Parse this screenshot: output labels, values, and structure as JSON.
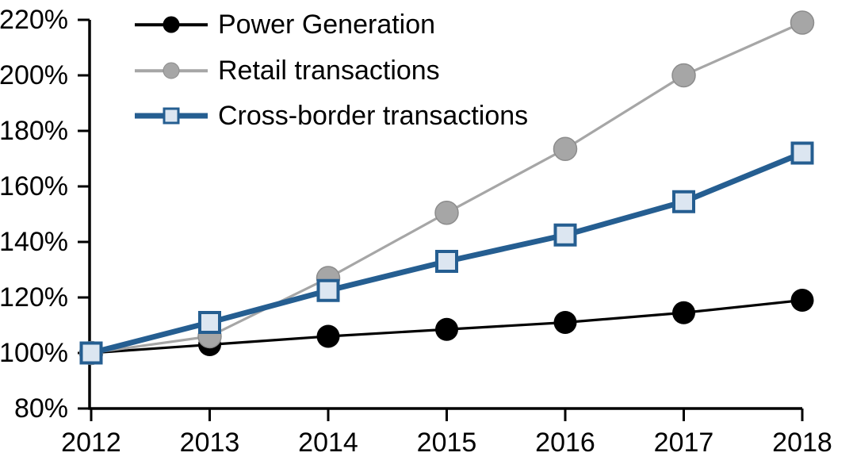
{
  "chart_data": {
    "type": "line",
    "title": "",
    "xlabel": "",
    "ylabel": "",
    "categories": [
      "2012",
      "2013",
      "2014",
      "2015",
      "2016",
      "2017",
      "2018"
    ],
    "series": [
      {
        "name": "Power Generation",
        "values": [
          100,
          103,
          106,
          108.5,
          111,
          114.5,
          119
        ],
        "color": "#000000",
        "marker": "circle",
        "marker_fill": "#000000",
        "marker_stroke": "none",
        "line_width": 3.2
      },
      {
        "name": "Retail transactions",
        "values": [
          100,
          106,
          127,
          150.5,
          173.5,
          200,
          219
        ],
        "color": "#A6A6A6",
        "marker": "circle",
        "marker_fill": "#A6A6A6",
        "marker_stroke": "#8C8C8C",
        "line_width": 3.2
      },
      {
        "name": "Cross-border transactions",
        "values": [
          100,
          111,
          122.5,
          133,
          142.5,
          154.5,
          172
        ],
        "color": "#255E91",
        "marker": "square",
        "marker_fill": "#DCE6F1",
        "marker_stroke": "#255E91",
        "line_width": 7
      }
    ],
    "ylim": [
      80,
      220
    ],
    "ytick_step": 20,
    "ytick_suffix": "%",
    "grid": false,
    "legend_position": "top-left",
    "axis_color": "#000000",
    "tick_label_color": "#000000",
    "tick_font_size": 34
  }
}
